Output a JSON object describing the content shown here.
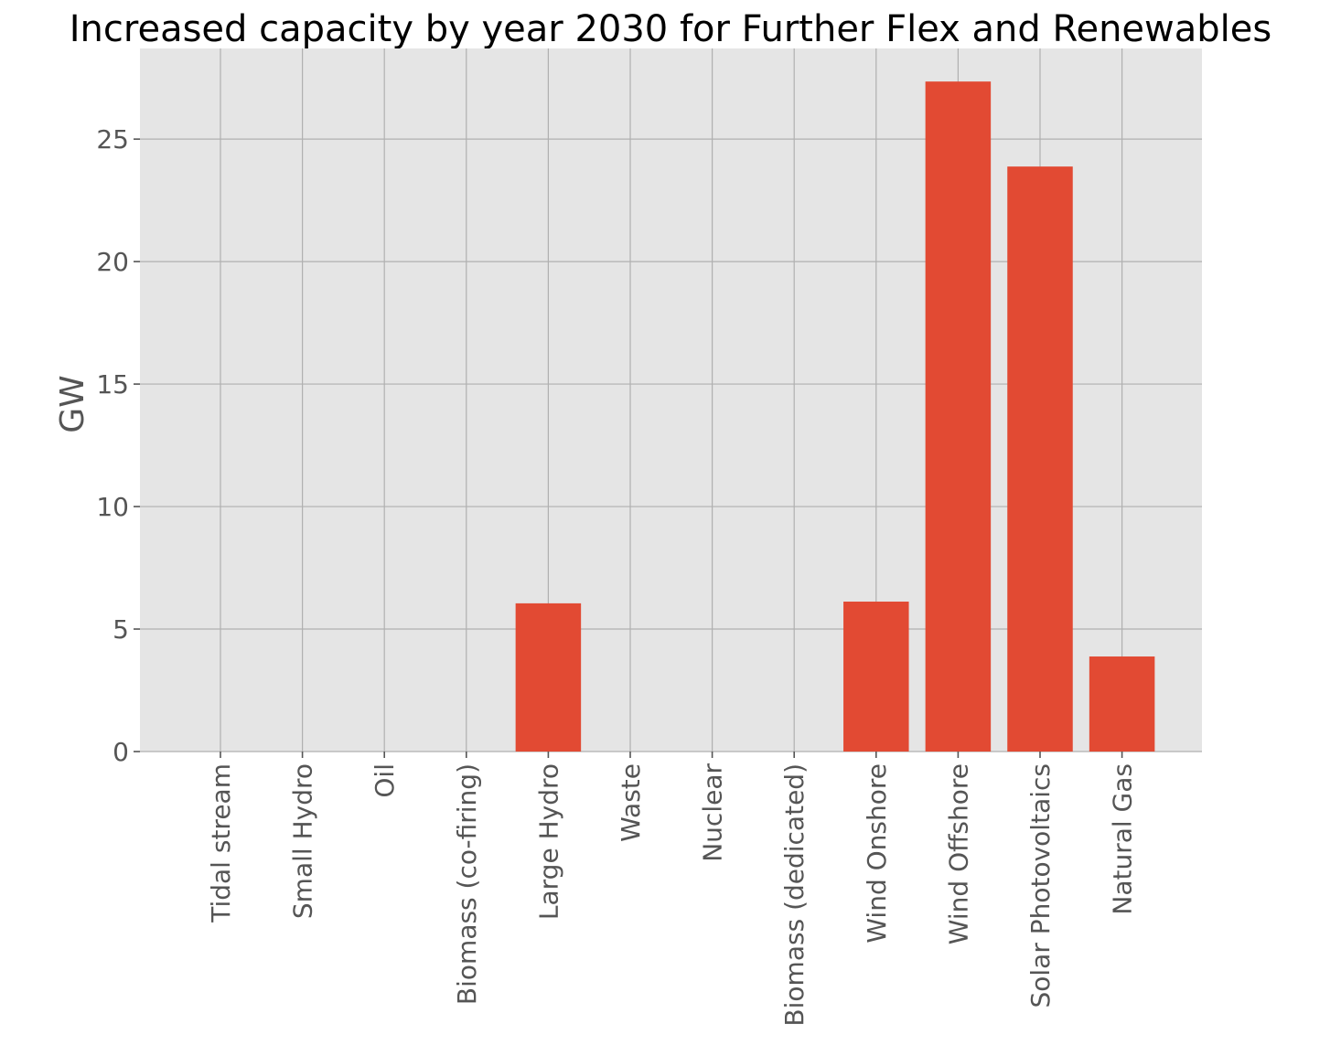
{
  "chart_data": {
    "type": "bar",
    "title": "Increased capacity by year 2030 for Further Flex and Renewables",
    "xlabel": "",
    "ylabel": "GW",
    "categories": [
      "Tidal stream",
      "Small Hydro",
      "Oil",
      "Biomass (co-firing)",
      "Large Hydro",
      "Waste",
      "Nuclear",
      "Biomass (dedicated)",
      "Wind Onshore",
      "Wind Offshore",
      "Solar Photovoltaics",
      "Natural Gas"
    ],
    "values": [
      0,
      0,
      0,
      0,
      6.05,
      0,
      0,
      0,
      6.12,
      27.35,
      23.88,
      3.88
    ],
    "ylim": [
      0,
      28.7
    ],
    "yticks": [
      0,
      5,
      10,
      15,
      20,
      25
    ],
    "ytick_labels": [
      "0",
      "5",
      "10",
      "15",
      "20",
      "25"
    ],
    "grid": true,
    "bar_color": "#e24a33",
    "background_color": "#e5e5e5",
    "grid_color": "#b0b0b0"
  }
}
